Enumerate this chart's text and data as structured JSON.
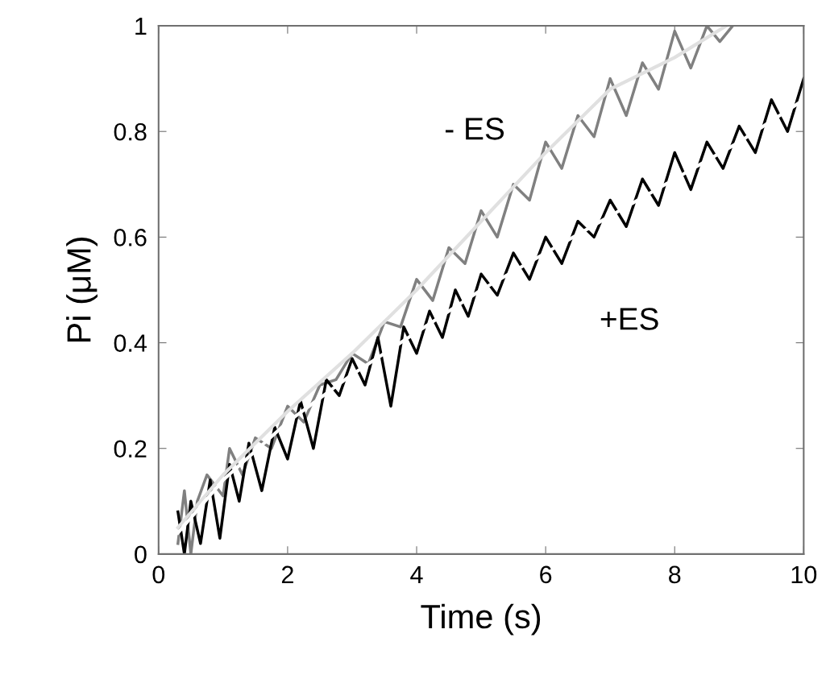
{
  "chart_data": {
    "type": "line",
    "xlabel": "Time (s)",
    "ylabel": "Pi (μM)",
    "xlim": [
      0,
      10
    ],
    "ylim": [
      0,
      1
    ],
    "xticks": [
      0,
      2,
      4,
      6,
      8,
      10
    ],
    "yticks": [
      0,
      0.2,
      0.4,
      0.6,
      0.8,
      1
    ],
    "grid": false,
    "legend": false,
    "marker": "none",
    "line_style": "solid",
    "series": [
      {
        "name": "- ES",
        "color": "#808080",
        "x": [
          0.3,
          0.4,
          0.5,
          0.6,
          0.75,
          1.0,
          1.1,
          1.3,
          1.5,
          1.75,
          2.0,
          2.25,
          2.5,
          2.75,
          3.0,
          3.25,
          3.5,
          3.75,
          4.0,
          4.25,
          4.5,
          4.75,
          5.0,
          5.25,
          5.5,
          5.75,
          6.0,
          6.25,
          6.5,
          6.75,
          7.0,
          7.25,
          7.5,
          7.75,
          8.0,
          8.25,
          8.5,
          8.7,
          8.9
        ],
        "values": [
          0.02,
          0.12,
          0.0,
          0.1,
          0.15,
          0.11,
          0.2,
          0.15,
          0.22,
          0.2,
          0.28,
          0.25,
          0.32,
          0.33,
          0.38,
          0.36,
          0.44,
          0.43,
          0.52,
          0.48,
          0.58,
          0.55,
          0.65,
          0.6,
          0.7,
          0.67,
          0.78,
          0.73,
          0.83,
          0.79,
          0.9,
          0.83,
          0.93,
          0.88,
          0.99,
          0.92,
          1.0,
          0.97,
          1.0
        ]
      },
      {
        "name": "+ES",
        "color": "#000000",
        "x": [
          0.3,
          0.4,
          0.5,
          0.65,
          0.8,
          0.95,
          1.1,
          1.25,
          1.4,
          1.6,
          1.8,
          2.0,
          2.2,
          2.4,
          2.6,
          2.8,
          3.0,
          3.2,
          3.4,
          3.6,
          3.8,
          4.0,
          4.2,
          4.4,
          4.6,
          4.8,
          5.0,
          5.25,
          5.5,
          5.75,
          6.0,
          6.25,
          6.5,
          6.75,
          7.0,
          7.25,
          7.5,
          7.75,
          8.0,
          8.25,
          8.5,
          8.75,
          9.0,
          9.25,
          9.5,
          9.75,
          10.0
        ],
        "values": [
          0.08,
          0.0,
          0.1,
          0.02,
          0.14,
          0.03,
          0.17,
          0.1,
          0.21,
          0.12,
          0.24,
          0.18,
          0.29,
          0.2,
          0.33,
          0.3,
          0.37,
          0.32,
          0.41,
          0.28,
          0.43,
          0.38,
          0.46,
          0.41,
          0.5,
          0.45,
          0.53,
          0.49,
          0.57,
          0.52,
          0.6,
          0.55,
          0.63,
          0.6,
          0.67,
          0.62,
          0.71,
          0.66,
          0.76,
          0.69,
          0.78,
          0.73,
          0.81,
          0.76,
          0.86,
          0.8,
          0.9
        ]
      },
      {
        "color": "#e0e0e0",
        "x": [
          0.3,
          1,
          2,
          3,
          4,
          5,
          6,
          7,
          8,
          8.8
        ],
        "values": [
          0.05,
          0.15,
          0.27,
          0.38,
          0.5,
          0.63,
          0.76,
          0.88,
          0.94,
          1.0
        ]
      },
      {
        "color": "#ffffff",
        "x": [
          0.3,
          1,
          2,
          3,
          4,
          5,
          6,
          7,
          8,
          9,
          10
        ],
        "values": [
          0.04,
          0.14,
          0.25,
          0.34,
          0.42,
          0.5,
          0.57,
          0.64,
          0.71,
          0.78,
          0.86
        ]
      }
    ]
  }
}
